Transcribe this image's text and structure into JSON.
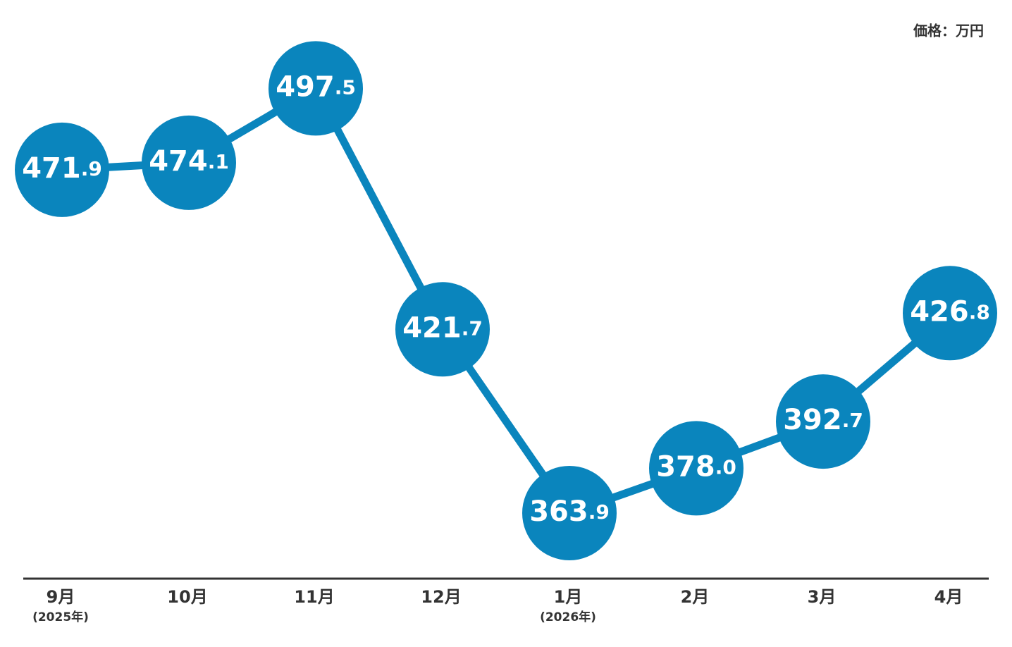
{
  "chart_data": {
    "type": "line",
    "unit_label": "価格：万円",
    "categories": [
      "9月",
      "10月",
      "11月",
      "12月",
      "1月",
      "2月",
      "3月",
      "4月"
    ],
    "category_notes": [
      "(2025年)",
      null,
      null,
      null,
      "(2026年)",
      null,
      null,
      null
    ],
    "values": [
      471.9,
      474.1,
      497.5,
      421.7,
      363.9,
      378.0,
      392.7,
      426.8
    ],
    "value_labels": [
      "471.9",
      "474.1",
      "497.5",
      "421.7",
      "363.9",
      "378.0",
      "392.7",
      "426.8"
    ],
    "color": "#0a85bd",
    "ylim": [
      343.5,
      525.3
    ]
  }
}
